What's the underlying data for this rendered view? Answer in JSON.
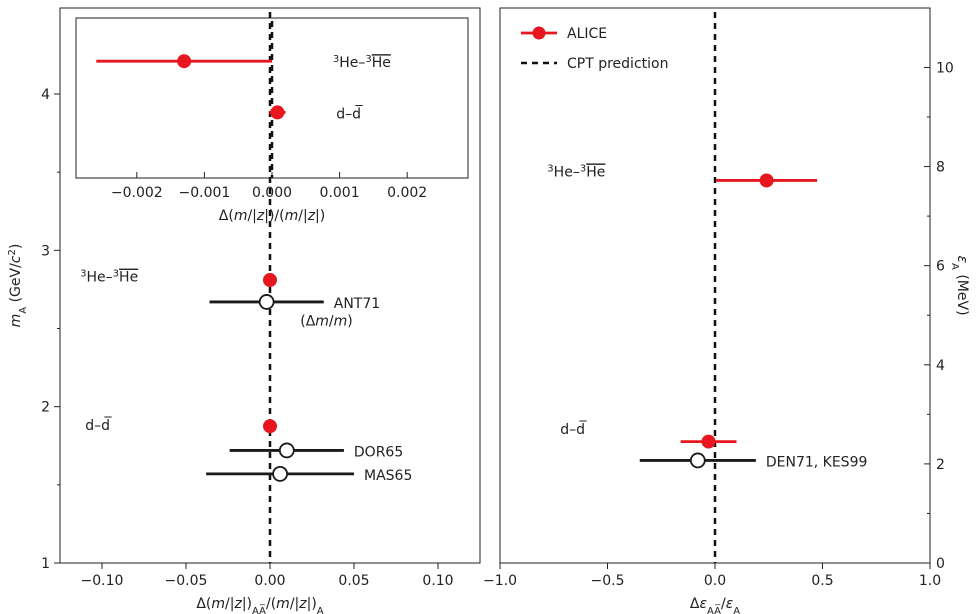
{
  "colors": {
    "alice": "#e8161e",
    "reference": "#1a1a1a",
    "cpt": "#111111"
  },
  "chart_data": [
    {
      "id": "left_main",
      "type": "scatter",
      "xlabel_html": "Δ(<tspan font-style='italic'>m</tspan>/|<tspan font-style='italic'>z</tspan>|)<tspan baseline-shift='sub' font-size='10'>AA̅</tspan>/(<tspan font-style='italic'>m</tspan>/|<tspan font-style='italic'>z</tspan>|)<tspan baseline-shift='sub' font-size='10'>A</tspan>",
      "ylabel_html": "<tspan font-style='italic'>m</tspan><tspan baseline-shift='sub' font-size='10'>A</tspan> (GeV/<tspan font-style='italic'>c</tspan><tspan baseline-shift='super' font-size='10'>2</tspan>)",
      "xlim": [
        -0.125,
        0.125
      ],
      "ylim": [
        1.0,
        4.55
      ],
      "xticks": [
        -0.1,
        -0.05,
        0.0,
        0.05,
        0.1
      ],
      "xtick_labels": [
        "−0.10",
        "−0.05",
        "0.00",
        "0.05",
        "0.10"
      ],
      "yticks": [
        1,
        2,
        3,
        4
      ],
      "ytick_labels": [
        "1",
        "2",
        "3",
        "4"
      ],
      "series": [
        {
          "marker": "filled",
          "points": [
            {
              "x": 0.0,
              "y": 2.81,
              "xerr": 0.0
            },
            {
              "x": 0.0,
              "y": 1.875,
              "xerr": 0.0
            }
          ]
        },
        {
          "marker": "open",
          "points": [
            {
              "x": -0.002,
              "y": 2.67,
              "xerr": 0.034,
              "label": "ANT71"
            },
            {
              "x": 0.01,
              "y": 1.72,
              "xerr": 0.034,
              "label": "DOR65"
            },
            {
              "x": 0.006,
              "y": 1.57,
              "xerr": 0.044,
              "label": "MAS65"
            }
          ]
        }
      ],
      "annotations": [
        {
          "text_html": "<tspan baseline-shift='super' font-size='10'>3</tspan>He–<tspan baseline-shift='super' font-size='10'>3</tspan><tspan text-decoration='overline'>He</tspan>",
          "x": -0.113,
          "y": 2.8
        },
        {
          "text_html": "(Δ<tspan font-style='italic'>m</tspan>/<tspan font-style='italic'>m</tspan>)",
          "x": 0.018,
          "y": 2.52
        },
        {
          "text_html": "d–d̅",
          "x": -0.11,
          "y": 1.85
        }
      ]
    },
    {
      "id": "left_inset",
      "type": "scatter",
      "xlabel_html": "Δ(<tspan font-style='italic'>m</tspan>/|<tspan font-style='italic'>z</tspan>|)/(<tspan font-style='italic'>m</tspan>/|<tspan font-style='italic'>z</tspan>|)",
      "xlim": [
        -0.0029,
        0.0029
      ],
      "ylim": [
        0,
        1
      ],
      "xticks": [
        -0.002,
        -0.001,
        0.0,
        0.001,
        0.002
      ],
      "xtick_labels": [
        "−0.002",
        "−0.001",
        "0.000",
        "0.001",
        "0.002"
      ],
      "series": [
        {
          "marker": "filled",
          "points": [
            {
              "x": -0.0013,
              "y": 0.73,
              "xerr": 0.0013,
              "label": "<tspan baseline-shift='super' font-size='10'>3</tspan>He–<tspan baseline-shift='super' font-size='10'>3</tspan><tspan text-decoration='overline'>He</tspan>"
            },
            {
              "x": 8e-05,
              "y": 0.41,
              "xerr": 0.00012,
              "label": "d–d̅"
            }
          ]
        }
      ]
    },
    {
      "id": "right",
      "type": "scatter",
      "xlabel_html": "Δ<tspan font-style='italic'>ε</tspan><tspan baseline-shift='sub' font-size='10'>AA̅</tspan>/<tspan font-style='italic'>ε</tspan><tspan baseline-shift='sub' font-size='10'>A</tspan>",
      "ylabel_html": "<tspan font-style='italic'>ε</tspan><tspan baseline-shift='sub' font-size='10'>A</tspan> (MeV)",
      "xlim": [
        -1.0,
        1.0
      ],
      "ylim": [
        0,
        11.2
      ],
      "xticks": [
        -1.0,
        -0.5,
        0.0,
        0.5,
        1.0
      ],
      "xtick_labels": [
        "−1.0",
        "−0.5",
        "0.0",
        "0.5",
        "1.0"
      ],
      "yticks": [
        0,
        2,
        4,
        6,
        8,
        10
      ],
      "ytick_labels": [
        "0",
        "2",
        "4",
        "6",
        "8",
        "10"
      ],
      "series": [
        {
          "name": "ALICE",
          "marker": "filled",
          "points": [
            {
              "x": 0.24,
              "y": 7.72,
              "xerr": 0.235
            },
            {
              "x": -0.03,
              "y": 2.45,
              "xerr": 0.13
            }
          ]
        },
        {
          "marker": "open",
          "points": [
            {
              "x": -0.08,
              "y": 2.07,
              "xerr": 0.27,
              "label": "DEN71, KES99"
            }
          ]
        }
      ],
      "annotations": [
        {
          "text_html": "<tspan baseline-shift='super' font-size='10'>3</tspan>He–<tspan baseline-shift='super' font-size='10'>3</tspan><tspan text-decoration='overline'>He</tspan>",
          "x": -0.78,
          "y": 7.8
        },
        {
          "text_html": "d–d̅",
          "x": -0.72,
          "y": 2.6
        }
      ],
      "legend": {
        "position": "top-left",
        "entries": [
          "ALICE",
          "CPT prediction"
        ]
      }
    }
  ]
}
